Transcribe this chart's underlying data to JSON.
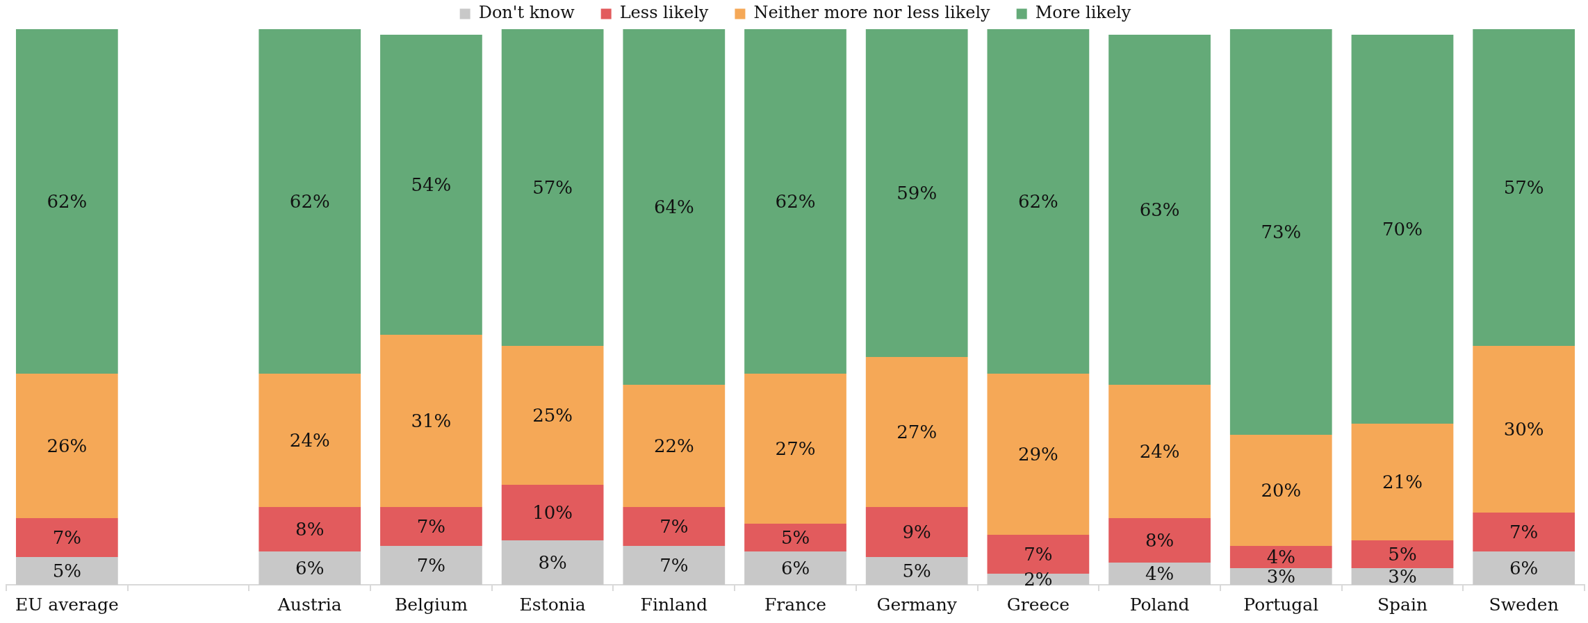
{
  "chart_data": {
    "type": "bar",
    "stacked": true,
    "legend": "top",
    "tick_labels": "x",
    "categories": [
      "EU average",
      null,
      "Austria",
      "Belgium",
      "Estonia",
      "Finland",
      "France",
      "Germany",
      "Greece",
      "Poland",
      "Portugal",
      "Spain",
      "Sweden"
    ],
    "series": [
      {
        "name": "Don't know",
        "color": "#c8c8c8",
        "values": [
          5,
          null,
          6,
          7,
          8,
          7,
          6,
          5,
          2,
          4,
          3,
          3,
          6
        ],
        "value_labels": [
          "5%",
          null,
          "6%",
          "7%",
          "8%",
          "7%",
          "6%",
          "5%",
          "2%",
          "4%",
          "3%",
          "3%",
          "6%"
        ]
      },
      {
        "name": "Less likely",
        "color": "#e25b5d",
        "values": [
          7,
          null,
          8,
          7,
          10,
          7,
          5,
          9,
          7,
          8,
          4,
          5,
          7
        ],
        "value_labels": [
          "7%",
          null,
          "8%",
          "7%",
          "10%",
          "7%",
          "5%",
          "9%",
          "7%",
          "8%",
          "4%",
          "5%",
          "7%"
        ]
      },
      {
        "name": "Neither more nor less likely",
        "color": "#f5a857",
        "values": [
          26,
          null,
          24,
          31,
          25,
          22,
          27,
          27,
          29,
          24,
          20,
          21,
          30
        ],
        "value_labels": [
          "26%",
          null,
          "24%",
          "31%",
          "25%",
          "22%",
          "27%",
          "27%",
          "29%",
          "24%",
          "20%",
          "21%",
          "30%"
        ]
      },
      {
        "name": "More likely",
        "color": "#64aa78",
        "values": [
          62,
          null,
          62,
          54,
          57,
          64,
          62,
          59,
          62,
          63,
          73,
          70,
          57
        ],
        "value_labels": [
          "62%",
          null,
          "62%",
          "54%",
          "57%",
          "64%",
          "62%",
          "59%",
          "62%",
          "63%",
          "73%",
          "70%",
          "57%"
        ]
      }
    ]
  }
}
